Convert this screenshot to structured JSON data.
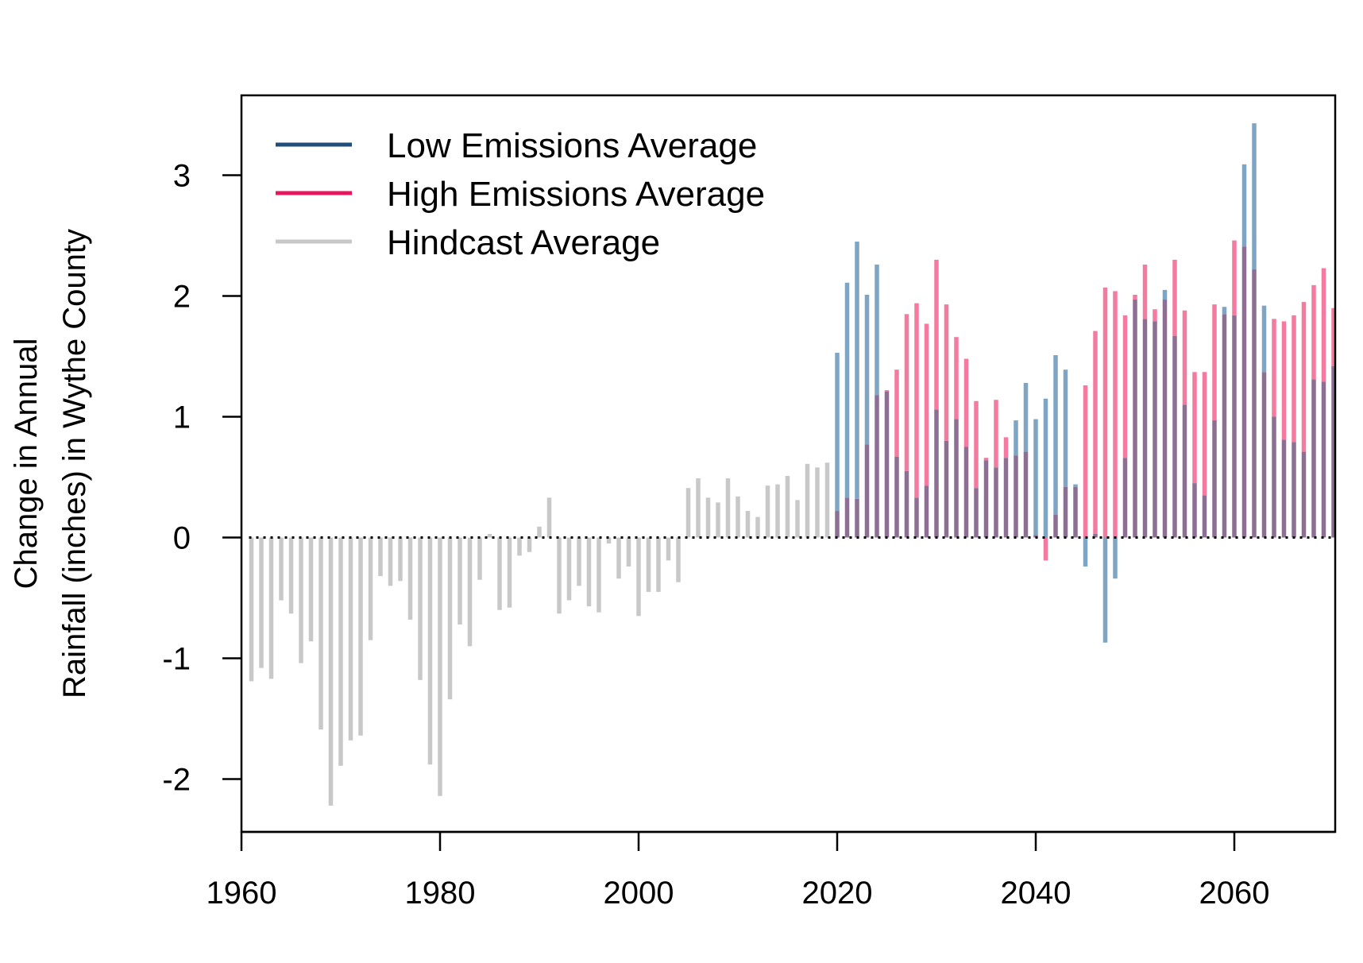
{
  "chart_data": {
    "type": "bar",
    "title": "",
    "xlabel": "",
    "ylabel": [
      "Change in Annual",
      "Rainfall (inches) in Wythe County"
    ],
    "xlim": [
      1960,
      2070
    ],
    "ylim": [
      -2.45,
      3.65
    ],
    "x_ticks": [
      1960,
      1980,
      2000,
      2020,
      2040,
      2060
    ],
    "y_ticks": [
      -2,
      -1,
      0,
      1,
      2,
      3
    ],
    "y_tick_labels": [
      "-2",
      "-1",
      "0",
      "1",
      "2",
      "3"
    ],
    "zero_line": "dotted",
    "grid": false,
    "legend_position": "top-left",
    "colors": {
      "low": "#1f4e79",
      "high": "#e8175d",
      "hindcast": "#c8c8c8",
      "low_bar": "#7fa5c5",
      "high_bar": "#f47aa0",
      "overlap_bar": "#8c6f93"
    },
    "legend": [
      {
        "key": "low",
        "label": "Low Emissions Average"
      },
      {
        "key": "high",
        "label": "High Emissions Average"
      },
      {
        "key": "hindcast",
        "label": "Hindcast Average"
      }
    ],
    "series": [
      {
        "name": "Hindcast Average",
        "key": "hindcast",
        "x": [
          1961,
          1962,
          1963,
          1964,
          1965,
          1966,
          1967,
          1968,
          1969,
          1970,
          1971,
          1972,
          1973,
          1974,
          1975,
          1976,
          1977,
          1978,
          1979,
          1980,
          1981,
          1982,
          1983,
          1984,
          1985,
          1986,
          1987,
          1988,
          1989,
          1990,
          1991,
          1992,
          1993,
          1994,
          1995,
          1996,
          1997,
          1998,
          1999,
          2000,
          2001,
          2002,
          2003,
          2004,
          2005,
          2006,
          2007,
          2008,
          2009,
          2010,
          2011,
          2012,
          2013,
          2014,
          2015,
          2016,
          2017,
          2018,
          2019
        ],
        "values": [
          -1.19,
          -1.08,
          -1.17,
          -0.52,
          -0.63,
          -1.04,
          -0.86,
          -1.59,
          -2.22,
          -1.89,
          -1.68,
          -1.64,
          -0.85,
          -0.32,
          -0.4,
          -0.36,
          -0.68,
          -1.18,
          -1.88,
          -2.14,
          -1.34,
          -0.72,
          -0.9,
          -0.35,
          0.03,
          -0.6,
          -0.58,
          -0.15,
          -0.12,
          0.09,
          0.33,
          -0.63,
          -0.52,
          -0.4,
          -0.57,
          -0.62,
          -0.05,
          -0.34,
          -0.24,
          -0.65,
          -0.45,
          -0.45,
          -0.19,
          -0.37,
          0.41,
          0.49,
          0.33,
          0.29,
          0.49,
          0.34,
          0.22,
          0.17,
          0.43,
          0.44,
          0.51,
          0.31,
          0.61,
          0.58,
          0.62
        ]
      },
      {
        "name": "Low Emissions Average",
        "key": "low",
        "x": [
          2020,
          2021,
          2022,
          2023,
          2024,
          2025,
          2026,
          2027,
          2028,
          2029,
          2030,
          2031,
          2032,
          2033,
          2034,
          2035,
          2036,
          2037,
          2038,
          2039,
          2040,
          2041,
          2042,
          2043,
          2044,
          2045,
          2046,
          2047,
          2048,
          2049,
          2050,
          2051,
          2052,
          2053,
          2054,
          2055,
          2056,
          2057,
          2058,
          2059,
          2060,
          2061,
          2062,
          2063,
          2064,
          2065,
          2066,
          2067,
          2068,
          2069,
          2070
        ],
        "values": [
          1.53,
          2.11,
          2.45,
          2.01,
          2.26,
          1.21,
          0.67,
          0.55,
          0.33,
          0.43,
          1.06,
          0.8,
          0.98,
          0.75,
          0.41,
          0.64,
          0.58,
          0.66,
          0.97,
          1.28,
          0.98,
          1.15,
          1.51,
          1.39,
          0.44,
          -0.24,
          0.03,
          -0.87,
          -0.34,
          0.66,
          1.97,
          1.81,
          1.79,
          2.05,
          1.67,
          1.1,
          0.45,
          0.35,
          0.97,
          1.91,
          1.84,
          3.09,
          3.43,
          1.92,
          1.0,
          0.81,
          0.79,
          0.71,
          1.31,
          1.29,
          1.42
        ]
      },
      {
        "name": "High Emissions Average",
        "key": "high",
        "x": [
          2020,
          2021,
          2022,
          2023,
          2024,
          2025,
          2026,
          2027,
          2028,
          2029,
          2030,
          2031,
          2032,
          2033,
          2034,
          2035,
          2036,
          2037,
          2038,
          2039,
          2040,
          2041,
          2042,
          2043,
          2044,
          2045,
          2046,
          2047,
          2048,
          2049,
          2050,
          2051,
          2052,
          2053,
          2054,
          2055,
          2056,
          2057,
          2058,
          2059,
          2060,
          2061,
          2062,
          2063,
          2064,
          2065,
          2066,
          2067,
          2068,
          2069,
          2070
        ],
        "values": [
          0.22,
          0.33,
          0.32,
          0.77,
          1.18,
          1.22,
          1.39,
          1.85,
          1.94,
          1.77,
          2.3,
          1.93,
          1.66,
          1.48,
          1.13,
          0.66,
          1.14,
          0.83,
          0.68,
          0.71,
          0.02,
          -0.19,
          0.19,
          0.42,
          0.42,
          1.26,
          1.71,
          2.07,
          2.04,
          1.84,
          2.01,
          2.26,
          1.89,
          1.97,
          2.3,
          1.88,
          1.37,
          1.37,
          1.93,
          1.85,
          2.46,
          2.41,
          2.22,
          1.37,
          1.81,
          1.79,
          1.84,
          1.95,
          2.09,
          2.23,
          1.9
        ]
      }
    ]
  }
}
